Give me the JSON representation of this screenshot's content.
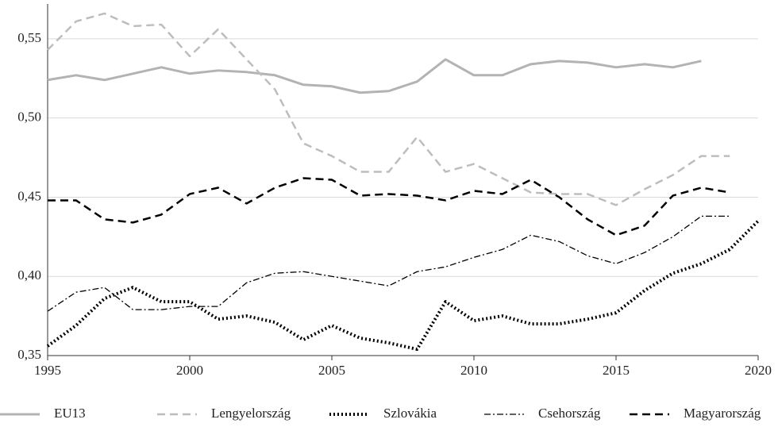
{
  "chart_data": {
    "type": "line",
    "x": [
      1995,
      1996,
      1997,
      1998,
      1999,
      2000,
      2001,
      2002,
      2003,
      2004,
      2005,
      2006,
      2007,
      2008,
      2009,
      2010,
      2011,
      2012,
      2013,
      2014,
      2015,
      2016,
      2017,
      2018,
      2019,
      2020
    ],
    "series": [
      {
        "name": "EU13",
        "color": "#b3b3b3",
        "style": "solid",
        "values": [
          0.524,
          0.527,
          0.524,
          0.528,
          0.532,
          0.528,
          0.53,
          0.529,
          0.527,
          0.521,
          0.52,
          0.516,
          0.517,
          0.523,
          0.537,
          0.527,
          0.527,
          0.534,
          0.536,
          0.535,
          0.532,
          0.534,
          0.532,
          0.536,
          null,
          null
        ]
      },
      {
        "name": "Lengyelország",
        "color": "#bdbdbd",
        "style": "dashed",
        "values": [
          0.543,
          0.561,
          0.566,
          0.558,
          0.559,
          0.539,
          0.556,
          0.537,
          0.518,
          0.484,
          0.476,
          0.466,
          0.466,
          0.488,
          0.466,
          0.471,
          0.462,
          0.453,
          0.452,
          0.452,
          0.445,
          0.455,
          0.464,
          0.476,
          0.476,
          null
        ]
      },
      {
        "name": "Szlovákia",
        "color": "#000000",
        "style": "dotted",
        "values": [
          0.356,
          0.369,
          0.386,
          0.393,
          0.384,
          0.384,
          0.373,
          0.375,
          0.371,
          0.36,
          0.369,
          0.361,
          0.358,
          0.354,
          0.384,
          0.372,
          0.375,
          0.37,
          0.37,
          0.373,
          0.377,
          0.391,
          0.402,
          0.408,
          0.417,
          0.435
        ]
      },
      {
        "name": "Csehország",
        "color": "#000000",
        "style": "dashdot",
        "values": [
          0.378,
          0.39,
          0.393,
          0.379,
          0.379,
          0.381,
          0.381,
          0.396,
          0.402,
          0.403,
          0.4,
          0.397,
          0.394,
          0.403,
          0.406,
          0.412,
          0.417,
          0.426,
          0.422,
          0.413,
          0.408,
          0.415,
          0.425,
          0.438,
          0.438,
          null
        ]
      },
      {
        "name": "Magyarország",
        "color": "#000000",
        "style": "dashed",
        "values": [
          0.448,
          0.448,
          0.436,
          0.434,
          0.439,
          0.452,
          0.456,
          0.446,
          0.456,
          0.462,
          0.461,
          0.451,
          0.452,
          0.451,
          0.448,
          0.454,
          0.452,
          0.461,
          0.45,
          0.436,
          0.426,
          0.432,
          0.451,
          0.456,
          0.453,
          null
        ]
      }
    ],
    "xlim": [
      1995,
      2020
    ],
    "xticks": [
      1995,
      2000,
      2005,
      2010,
      2015,
      2020
    ],
    "ylim": [
      0.35,
      0.572
    ],
    "yticks": [
      {
        "value": 0.35,
        "label": "0,35"
      },
      {
        "value": 0.4,
        "label": "0,40"
      },
      {
        "value": 0.45,
        "label": "0,45"
      },
      {
        "value": 0.5,
        "label": "0,50"
      },
      {
        "value": 0.55,
        "label": "0,55"
      }
    ],
    "grid": true,
    "legend": "bottom"
  }
}
